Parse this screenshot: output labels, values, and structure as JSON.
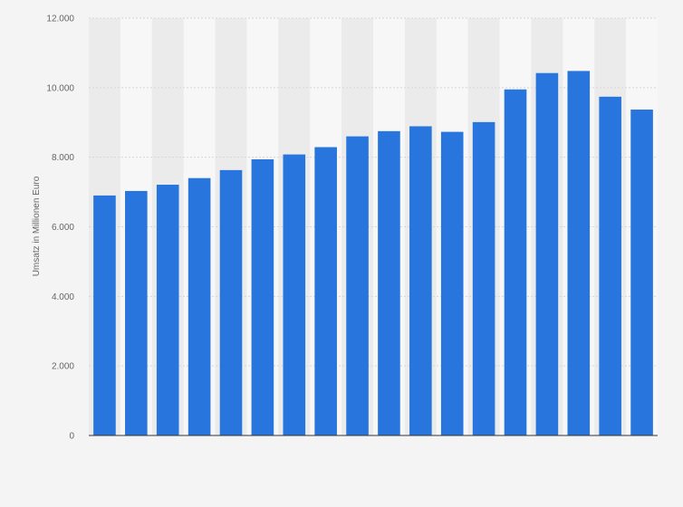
{
  "chart_data": {
    "type": "bar",
    "title": "",
    "xlabel": "",
    "ylabel": "Umsatz in Millionen Euro",
    "ylim": [
      0,
      12000
    ],
    "yticks": [
      0,
      2000,
      4000,
      6000,
      8000,
      10000,
      12000
    ],
    "ytick_labels": [
      "0",
      "2.000",
      "4.000",
      "6.000",
      "8.000",
      "10.000",
      "12.000"
    ],
    "grid": true,
    "bar_color": "#2876dd",
    "categories": [
      "",
      "",
      "",
      "",
      "",
      "",
      "",
      "",
      "",
      "",
      "",
      "",
      "",
      "",
      "",
      "",
      "",
      ""
    ],
    "values": [
      6900,
      7030,
      7210,
      7400,
      7630,
      7940,
      8080,
      8290,
      8600,
      8750,
      8890,
      8730,
      9010,
      9950,
      10420,
      10480,
      9740,
      9370
    ]
  }
}
